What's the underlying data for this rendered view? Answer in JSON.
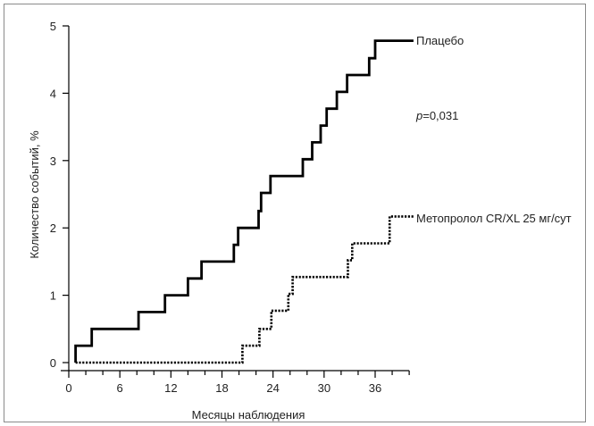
{
  "chart_data": {
    "type": "line",
    "xlabel": "Месяцы наблюдения",
    "ylabel": "Количество событий, %",
    "xlim": [
      0,
      40
    ],
    "ylim": [
      0,
      5
    ],
    "x_ticks": [
      0,
      6,
      12,
      18,
      24,
      30,
      36
    ],
    "y_ticks": [
      0,
      1,
      2,
      3,
      4,
      5
    ],
    "annotation": "p=0,031",
    "series": [
      {
        "name": "Плацебо",
        "style": "solid",
        "color": "#000000",
        "step_points": [
          [
            0.8,
            0
          ],
          [
            0.8,
            0.25
          ],
          [
            2.7,
            0.25
          ],
          [
            2.7,
            0.5
          ],
          [
            8.2,
            0.5
          ],
          [
            8.2,
            0.75
          ],
          [
            11.3,
            0.75
          ],
          [
            11.3,
            1.0
          ],
          [
            14.0,
            1.0
          ],
          [
            14.0,
            1.25
          ],
          [
            15.6,
            1.25
          ],
          [
            15.6,
            1.5
          ],
          [
            19.4,
            1.5
          ],
          [
            19.4,
            1.75
          ],
          [
            19.9,
            1.75
          ],
          [
            19.9,
            2.0
          ],
          [
            22.3,
            2.0
          ],
          [
            22.3,
            2.25
          ],
          [
            22.6,
            2.25
          ],
          [
            22.6,
            2.52
          ],
          [
            23.7,
            2.52
          ],
          [
            23.7,
            2.77
          ],
          [
            27.5,
            2.77
          ],
          [
            27.5,
            3.02
          ],
          [
            28.6,
            3.02
          ],
          [
            28.6,
            3.27
          ],
          [
            29.6,
            3.27
          ],
          [
            29.6,
            3.52
          ],
          [
            30.3,
            3.52
          ],
          [
            30.3,
            3.77
          ],
          [
            31.5,
            3.77
          ],
          [
            31.5,
            4.02
          ],
          [
            32.7,
            4.02
          ],
          [
            32.7,
            4.27
          ],
          [
            35.3,
            4.27
          ],
          [
            35.3,
            4.52
          ],
          [
            36.0,
            4.52
          ],
          [
            36.0,
            4.78
          ],
          [
            40.5,
            4.78
          ]
        ]
      },
      {
        "name": "Метопролол CR/XL 25 мг/сут",
        "style": "dotted",
        "color": "#000000",
        "step_points": [
          [
            0.8,
            0
          ],
          [
            20.4,
            0
          ],
          [
            20.4,
            0.25
          ],
          [
            22.4,
            0.25
          ],
          [
            22.4,
            0.5
          ],
          [
            23.8,
            0.5
          ],
          [
            23.8,
            0.77
          ],
          [
            25.8,
            0.77
          ],
          [
            25.8,
            1.02
          ],
          [
            26.3,
            1.02
          ],
          [
            26.3,
            1.27
          ],
          [
            32.8,
            1.27
          ],
          [
            32.8,
            1.52
          ],
          [
            33.3,
            1.52
          ],
          [
            33.3,
            1.77
          ],
          [
            37.7,
            1.77
          ],
          [
            37.7,
            2.17
          ],
          [
            40.5,
            2.17
          ]
        ]
      }
    ]
  },
  "legend": {
    "placebo_label": "Плацебо",
    "p_italic": "p",
    "p_value": "=0,031",
    "metoprolol_label": "Метопролол CR/XL 25 мг/сут"
  }
}
